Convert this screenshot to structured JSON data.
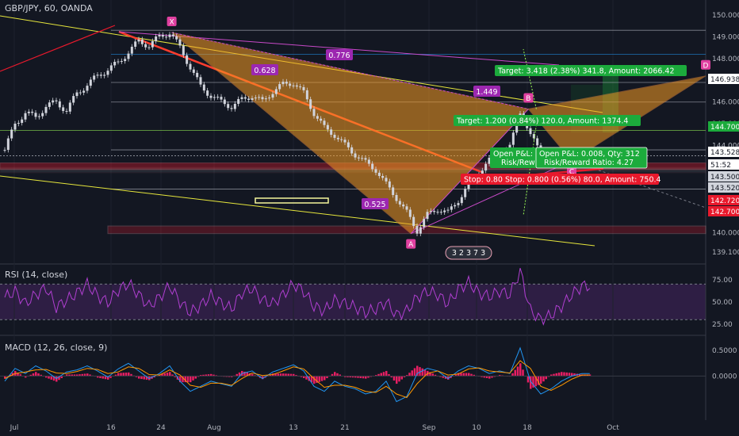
{
  "header": {
    "title": "GBP/JPY, 60, OANDA",
    "rsi_label": "RSI (14, close)",
    "macd_label": "MACD (12, 26, close, 9)"
  },
  "colors": {
    "background": "#131722",
    "pattern_fill": "#f59b23",
    "up_candle": "#d1d4dc",
    "rsi_line": "#b03fd1",
    "macd_line": "#2196f3",
    "signal_line": "#ff9800",
    "histogram": "#e91e63",
    "target": "#1cab3c",
    "stop": "#e8192c",
    "point_marker": "#e040a0"
  },
  "chart_data": [
    {
      "type": "candlestick",
      "symbol": "GBP/JPY",
      "interval": "60",
      "broker": "OANDA",
      "x_ticks": [
        "Jul",
        "16",
        "24",
        "Aug",
        "13",
        "21",
        "Sep",
        "10",
        "18",
        "Oct"
      ],
      "y_ticks": [
        150.0,
        149.0,
        148.0,
        147.0,
        146.0,
        145.0,
        144.0,
        141.0,
        140.0,
        139.1
      ],
      "ylim": [
        138.8,
        150.3
      ],
      "price_tags": [
        {
          "label": "146.938",
          "value": 146.94,
          "style": "white"
        },
        {
          "label": "144.700",
          "value": 144.7,
          "style": "green"
        },
        {
          "label": "143.528",
          "value": 143.53,
          "style": "white"
        },
        {
          "label": "51:52",
          "value": 143.1,
          "style": "white"
        },
        {
          "label": "143.500",
          "value": 143.5,
          "style": "gray"
        },
        {
          "label": "143.520",
          "value": 143.52,
          "style": "gray"
        },
        {
          "label": "142.720",
          "value": 142.72,
          "style": "red"
        },
        {
          "label": "142.700",
          "value": 142.7,
          "style": "red"
        }
      ],
      "harmonic_pattern": {
        "points": [
          {
            "name": "X",
            "day": 16.2,
            "price": 149.2
          },
          {
            "name": "A",
            "day": 39.4,
            "price": 139.95
          },
          {
            "name": "B",
            "day": 50.8,
            "price": 145.68
          },
          {
            "name": "C",
            "day": 55.0,
            "price": 143.3
          },
          {
            "name": "D",
            "day": 68.0,
            "price": 147.2
          }
        ],
        "ratios": [
          "0.628",
          "0.776",
          "0.525",
          "1.449"
        ]
      },
      "horizontal_levels": [
        149.3,
        148.2,
        146.9,
        146.0,
        144.7,
        143.8,
        142.0
      ],
      "trade_labels": {
        "target_1": "Target: 3.418 (2.38%) 341.8, Amount: 2066.42",
        "target_2": "Target: 1.200 (0.84%) 120.0, Amount: 1374.4",
        "stop": "Stop: 0.80 Stop: 0.800 (0.56%) 80.0, Amount: 750.4",
        "pnl_1": "Open P&L:",
        "pnl_1b": "Risk/Rew",
        "pnl_2": "Open P&L: 0.008, Qty: 312",
        "pnl_2b": "Risk/Reward Ratio: 4.27"
      },
      "events_badge": "3 2 3 7 3",
      "series": [
        {
          "name": "GBP/JPY",
          "x_days": [
            0,
            1,
            2,
            3,
            4,
            5,
            6,
            7,
            8,
            9,
            10,
            11,
            12,
            13,
            14,
            15,
            16,
            17,
            18,
            19,
            20,
            21,
            22,
            23,
            24,
            25,
            26,
            27,
            28,
            29,
            30,
            31,
            32,
            33,
            34,
            35,
            36,
            37,
            38,
            39,
            40,
            41,
            42,
            43,
            44,
            45,
            46,
            47,
            48,
            49,
            50,
            51,
            52,
            53,
            54,
            55,
            56
          ],
          "close": [
            143.8,
            145.0,
            145.5,
            145.3,
            145.8,
            146.0,
            145.6,
            146.4,
            146.8,
            147.2,
            147.5,
            147.8,
            148.3,
            148.8,
            148.6,
            149.0,
            149.2,
            148.5,
            147.6,
            146.7,
            146.3,
            146.0,
            145.8,
            146.1,
            146.3,
            146.0,
            146.5,
            146.8,
            146.9,
            146.4,
            145.5,
            144.8,
            144.5,
            144.0,
            143.6,
            143.2,
            142.9,
            142.2,
            141.6,
            140.9,
            140.1,
            140.8,
            141.1,
            140.9,
            141.5,
            142.2,
            142.8,
            143.3,
            143.6,
            143.9,
            145.6,
            144.4,
            143.8,
            143.3,
            143.5,
            143.4,
            143.5
          ]
        }
      ]
    },
    {
      "type": "line",
      "title": "RSI (14, close)",
      "y_ticks": [
        75.0,
        50.0,
        25.0
      ],
      "ylim": [
        15,
        90
      ],
      "bands": [
        70,
        30
      ],
      "series": [
        {
          "values": [
            55,
            62,
            48,
            58,
            66,
            44,
            52,
            60,
            70,
            57,
            49,
            63,
            71,
            58,
            45,
            55,
            68,
            50,
            38,
            46,
            57,
            49,
            42,
            60,
            65,
            52,
            48,
            58,
            70,
            62,
            45,
            40,
            52,
            48,
            44,
            38,
            42,
            50,
            35,
            40,
            55,
            62,
            58,
            48,
            64,
            72,
            60,
            56,
            62,
            58,
            85,
            40,
            30,
            35,
            45,
            58,
            68
          ]
        }
      ]
    },
    {
      "type": "line",
      "title": "MACD (12, 26, close, 9)",
      "y_ticks": [
        0.5,
        0.0
      ],
      "ylim": [
        -0.8,
        0.75
      ],
      "series": [
        {
          "name": "MACD",
          "values": [
            -0.1,
            0.15,
            0.05,
            0.2,
            0.1,
            -0.05,
            0.08,
            0.12,
            0.2,
            0.1,
            -0.02,
            0.14,
            0.25,
            0.1,
            -0.05,
            0.05,
            0.2,
            -0.1,
            -0.3,
            -0.2,
            -0.1,
            -0.15,
            -0.2,
            0.05,
            0.1,
            -0.05,
            0.08,
            0.15,
            0.22,
            0.1,
            -0.2,
            -0.3,
            -0.1,
            -0.2,
            -0.25,
            -0.35,
            -0.3,
            -0.1,
            -0.5,
            -0.4,
            0.05,
            0.15,
            0.1,
            -0.05,
            0.1,
            0.2,
            0.15,
            0.05,
            0.1,
            0.05,
            0.55,
            -0.1,
            -0.35,
            -0.25,
            -0.1,
            0.0,
            0.05
          ]
        },
        {
          "name": "Signal",
          "values": [
            -0.05,
            0.05,
            0.08,
            0.12,
            0.13,
            0.06,
            0.05,
            0.09,
            0.15,
            0.13,
            0.05,
            0.08,
            0.18,
            0.15,
            0.03,
            0.02,
            0.12,
            0.02,
            -0.18,
            -0.22,
            -0.14,
            -0.14,
            -0.18,
            -0.05,
            0.06,
            0.01,
            0.03,
            0.1,
            0.18,
            0.14,
            -0.05,
            -0.22,
            -0.18,
            -0.18,
            -0.22,
            -0.3,
            -0.32,
            -0.2,
            -0.35,
            -0.42,
            -0.15,
            0.05,
            0.1,
            0.02,
            0.04,
            0.14,
            0.16,
            0.1,
            0.08,
            0.06,
            0.3,
            0.15,
            -0.2,
            -0.28,
            -0.18,
            -0.06,
            0.02
          ]
        }
      ]
    }
  ]
}
